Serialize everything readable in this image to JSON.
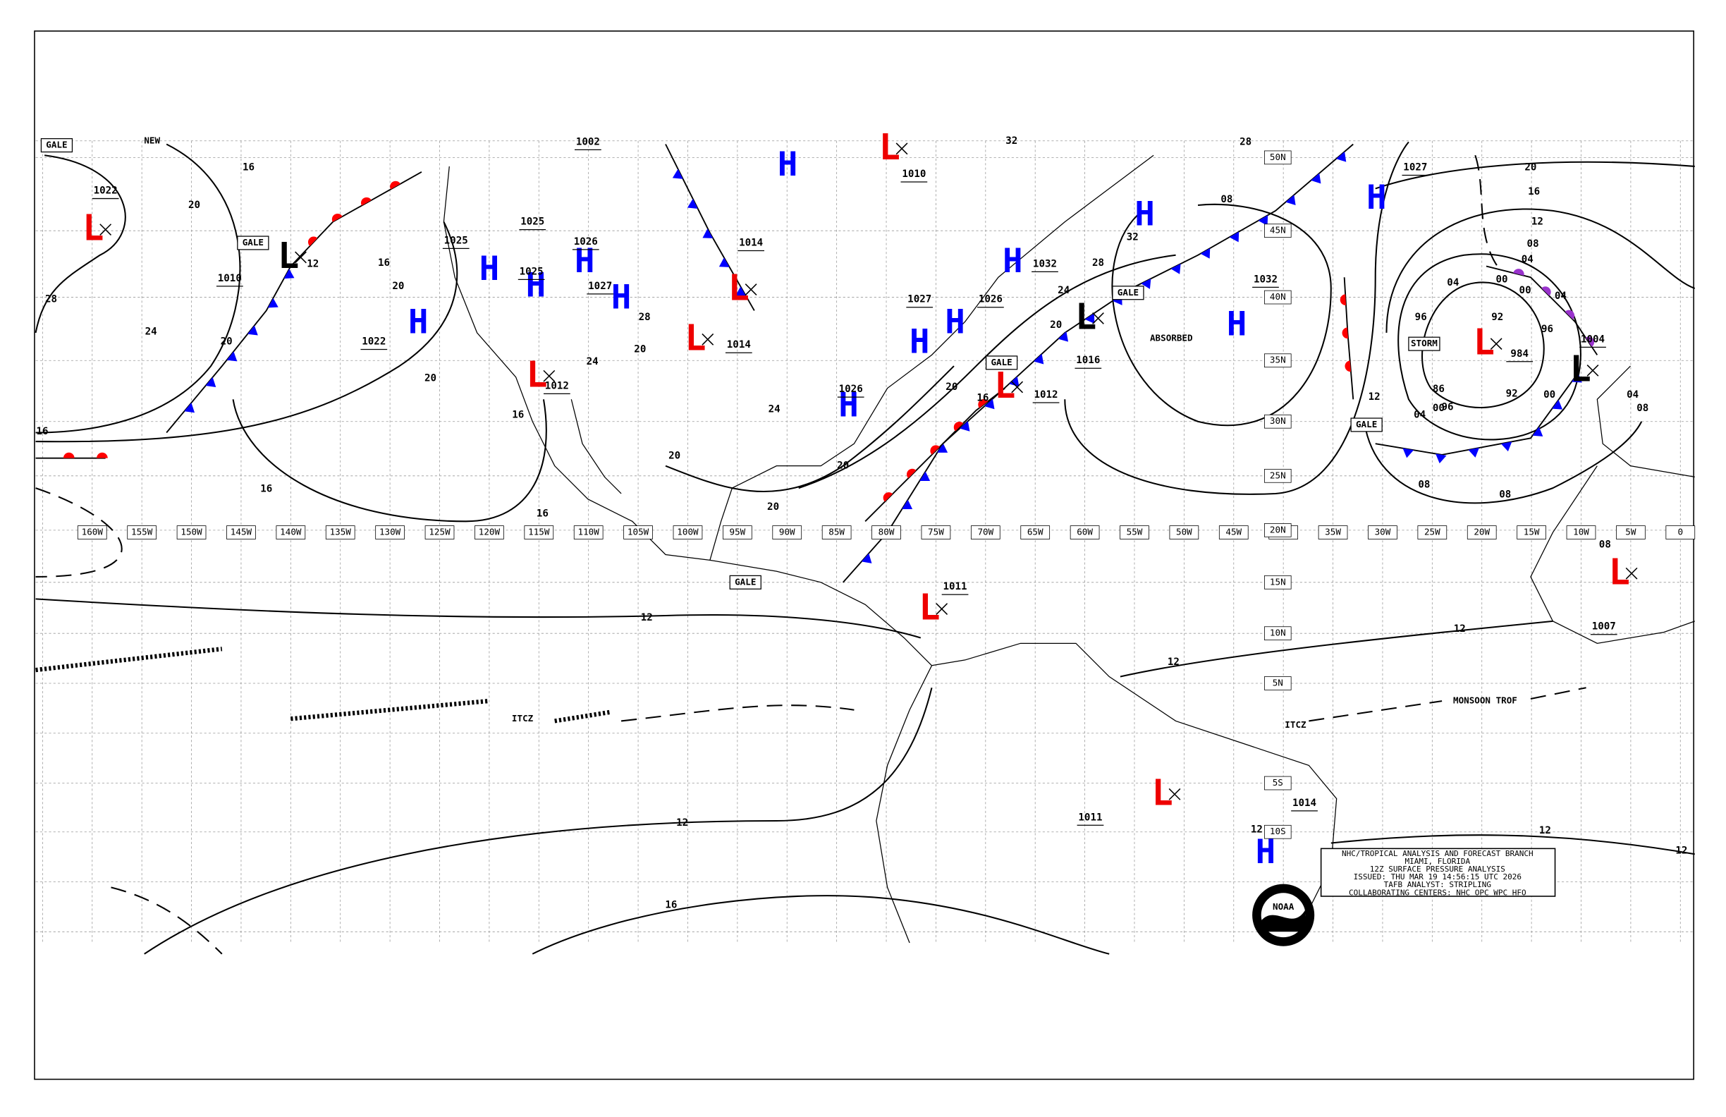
{
  "title_block": {
    "lines": [
      "NHC/TROPICAL ANALYSIS AND FORECAST BRANCH",
      "MIAMI, FLORIDA",
      "12Z SURFACE PRESSURE ANALYSIS",
      "ISSUED: THU MAR 19 14:56:15 UTC 2026",
      "TAFB ANALYST: STRIPLING",
      "COLLABORATING CENTERS: NHC OPC WPC HFO"
    ]
  },
  "logo": "NOAA",
  "longitude_labels": [
    "160W",
    "155W",
    "150W",
    "145W",
    "140W",
    "135W",
    "130W",
    "125W",
    "120W",
    "115W",
    "110W",
    "105W",
    "100W",
    "95W",
    "90W",
    "85W",
    "80W",
    "75W",
    "70W",
    "65W",
    "60W",
    "55W",
    "50W",
    "45W",
    "40W",
    "35W",
    "30W",
    "25W",
    "20W",
    "15W",
    "10W",
    "5W",
    "0"
  ],
  "latitude_labels": [
    "50N",
    "45N",
    "40N",
    "35N",
    "30N",
    "25N",
    "20N",
    "15N",
    "10N",
    "5N",
    "5S",
    "10S"
  ],
  "highs": [
    "H",
    "H",
    "H",
    "H",
    "H",
    "H",
    "H",
    "H",
    "H",
    "H",
    "H",
    "H",
    "H",
    "H"
  ],
  "lows": [
    "L",
    "L",
    "L",
    "L",
    "L",
    "L",
    "L",
    "L",
    "L",
    "L",
    "L",
    "L",
    "L"
  ],
  "pressure_values": [
    "1022",
    "1010",
    "1022",
    "1002",
    "1010",
    "1025",
    "1025",
    "1026",
    "1027",
    "1025",
    "1014",
    "1014",
    "1012",
    "1026",
    "1027",
    "1026",
    "1032",
    "1032",
    "1016",
    "1012",
    "1027",
    "1004",
    "984",
    "1011",
    "1011",
    "1014",
    "1007"
  ],
  "isobar_labels": [
    "20",
    "28",
    "24",
    "20",
    "16",
    "16",
    "16",
    "16",
    "20",
    "20",
    "12",
    "16",
    "16",
    "12",
    "12",
    "16",
    "12",
    "12",
    "12",
    "12",
    "12",
    "12",
    "08",
    "08",
    "04",
    "00",
    "86",
    "96",
    "92",
    "96",
    "96",
    "92",
    "00",
    "00",
    "04",
    "04",
    "04",
    "08",
    "08",
    "04",
    "08",
    "12",
    "16",
    "20",
    "28",
    "32",
    "32",
    "28",
    "24",
    "20",
    "20",
    "16",
    "20",
    "20",
    "20",
    "24",
    "28",
    "20",
    "24",
    "08",
    "00"
  ],
  "annotations": [
    "GALE",
    "GALE",
    "GALE",
    "GALE",
    "GALE",
    "GALE",
    "STORM",
    "ABSORBED",
    "ITCZ",
    "ITCZ",
    "MONSOON TROF",
    "NEW"
  ]
}
